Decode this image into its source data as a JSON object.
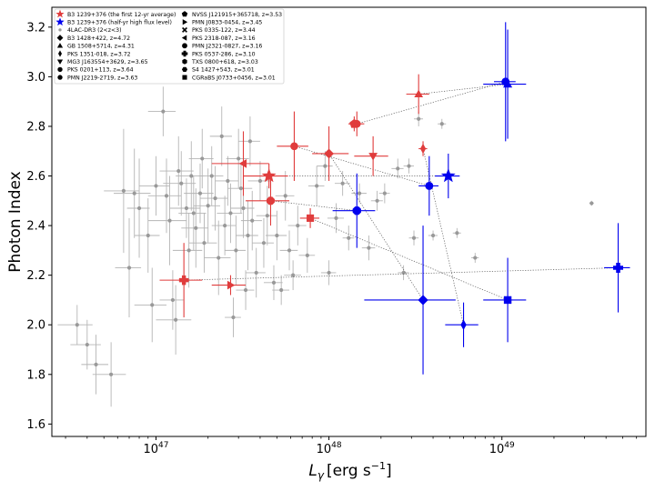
{
  "chart_data": {
    "type": "scatter",
    "title": "",
    "xlabel_base": "L",
    "xlabel_sub": "γ",
    "xlabel_units": "[erg s",
    "xlabel_exp": "−1",
    "xlabel_close": "]",
    "ylabel": "Photon Index",
    "xscale": "log",
    "xlim": [
      2.5e+46,
      6.8e+49
    ],
    "ylim": [
      1.55,
      3.28
    ],
    "xticks": [
      {
        "value": 1e+47,
        "base": "10",
        "exp": "47"
      },
      {
        "value": 1e+48,
        "base": "10",
        "exp": "48"
      },
      {
        "value": 1e+49,
        "base": "10",
        "exp": "49"
      }
    ],
    "yticks": [
      "1.6",
      "1.8",
      "2.0",
      "2.2",
      "2.4",
      "2.6",
      "2.8",
      "3.0",
      "3.2"
    ],
    "legend_position": "top-left",
    "colors": {
      "average": "#e03c3c",
      "high_flux": "#0000ee",
      "population": "#999999",
      "connector": "#555555"
    },
    "legend": [
      {
        "label": "B3 1239+376 (the first 12-yr average)",
        "marker": "star",
        "color": "#e03c3c"
      },
      {
        "label": "B3 1239+376 (half-yr high flux level)",
        "marker": "star",
        "color": "#0000ee"
      },
      {
        "label": "4LAC-DR3 (2<z<3)",
        "marker": "dot",
        "color": "#999999"
      },
      {
        "label": "B3 1428+422, z=4.72",
        "marker": "diamond",
        "color": "#000000"
      },
      {
        "label": "GB 1508+5714, z=4.31",
        "marker": "triangle-up",
        "color": "#000000"
      },
      {
        "label": "PKS 1351-018, z=3.72",
        "marker": "thin-diamond",
        "color": "#000000"
      },
      {
        "label": "MG3 J163554+3629, z=3.65",
        "marker": "triangle-down",
        "color": "#000000"
      },
      {
        "label": "PKS 0201+113, z=3.64",
        "marker": "circle",
        "color": "#000000"
      },
      {
        "label": "PMN J2219-2719, z=3.63",
        "marker": "circle",
        "color": "#000000"
      },
      {
        "label": "NVSS J121915+365718, z=3.53",
        "marker": "pentagon",
        "color": "#000000"
      },
      {
        "label": "PMN J0833-0454, z=3.45",
        "marker": "triangle-right",
        "color": "#000000"
      },
      {
        "label": "PKS 0335-122, z=3.44",
        "marker": "x",
        "color": "#000000"
      },
      {
        "label": "PKS 2318-087, z=3.16",
        "marker": "triangle-left",
        "color": "#000000"
      },
      {
        "label": "PMN J2321-0827, z=3.16",
        "marker": "octagon",
        "color": "#000000"
      },
      {
        "label": "PKS 0537-286, z=3.10",
        "marker": "plus",
        "color": "#000000"
      },
      {
        "label": "TXS 0800+618, z=3.03",
        "marker": "hexagon",
        "color": "#000000"
      },
      {
        "label": "S4 1427+543, z=3.01",
        "marker": "hexagon2",
        "color": "#000000"
      },
      {
        "label": "CGRaBS J0733+0456, z=3.01",
        "marker": "square",
        "color": "#000000"
      }
    ],
    "pairs": [
      {
        "name": "B3 1239+376",
        "marker": "star",
        "avg": {
          "x": 4.5e+47,
          "y": 2.6,
          "xerr": [
            1.3e+47,
            1.3e+47
          ],
          "yerr": [
            0.05,
            0.05
          ]
        },
        "high": {
          "x": 4.9e+48,
          "y": 2.6,
          "xerr": [
            8e+47,
            8e+47
          ],
          "yerr": [
            0.09,
            0.09
          ]
        }
      },
      {
        "name": "B3 1428+422",
        "marker": "diamond",
        "avg": {
          "x": 1e+48,
          "y": 2.69,
          "xerr": [
            2e+47,
            3e+47
          ],
          "yerr": [
            0.11,
            0.11
          ]
        },
        "high": {
          "x": 3.5e+48,
          "y": 2.1,
          "xerr": [
            1.9e+48,
            1.9e+48
          ],
          "yerr": [
            0.3,
            0.3
          ]
        }
      },
      {
        "name": "GB 1508+5714",
        "marker": "triangle-up",
        "avg": {
          "x": 3.3e+48,
          "y": 2.93,
          "xerr": [
            5e+47,
            5e+47
          ],
          "yerr": [
            0.08,
            0.08
          ]
        },
        "high": {
          "x": 1.08e+49,
          "y": 2.97,
          "xerr": [
            3e+48,
            3e+48
          ],
          "yerr": [
            0.22,
            0.22
          ]
        }
      },
      {
        "name": "PKS 1351-018",
        "marker": "thin-diamond",
        "avg": {
          "x": 3.5e+48,
          "y": 2.71,
          "xerr": [
            2e+47,
            2e+47
          ],
          "yerr": [
            0.03,
            0.03
          ]
        },
        "high": {
          "x": 6e+48,
          "y": 2.0,
          "xerr": [
            1.3e+48,
            1.3e+48
          ],
          "yerr": [
            0.09,
            0.09
          ]
        }
      },
      {
        "name": "MG3 J163554+3629",
        "marker": "triangle-down",
        "avg": {
          "x": 1.8e+48,
          "y": 2.68,
          "xerr": [
            4e+47,
            4e+47
          ],
          "yerr": [
            0.08,
            0.08
          ]
        },
        "high": null
      },
      {
        "name": "PKS 0201+113",
        "marker": "circle",
        "avg": {
          "x": 6.3e+47,
          "y": 2.72,
          "xerr": [
            1.3e+47,
            1.3e+47
          ],
          "yerr": [
            0.14,
            0.14
          ]
        },
        "high": {
          "x": 3.8e+48,
          "y": 2.56,
          "xerr": [
            5e+47,
            5e+47
          ],
          "yerr": [
            0.12,
            0.12
          ]
        }
      },
      {
        "name": "PMN J2219-2719",
        "marker": "circle",
        "avg": {
          "x": 1.45e+48,
          "y": 2.81,
          "xerr": [
            1.5e+47,
            1.5e+47
          ],
          "yerr": [
            0.05,
            0.05
          ]
        },
        "high": {
          "x": 1.05e+49,
          "y": 2.98,
          "xerr": [
            1.5e+48,
            1.5e+48
          ],
          "yerr": [
            0.24,
            0.24
          ]
        }
      },
      {
        "name": "NVSS J121915+365718",
        "marker": "pentagon",
        "avg": {
          "x": 1.4e+48,
          "y": 2.81,
          "xerr": [
            1e+47,
            1e+47
          ],
          "yerr": [
            0.03,
            0.03
          ]
        },
        "high": null
      },
      {
        "name": "PMN J0833-0454",
        "marker": "triangle-right",
        "avg": {
          "x": 2.7e+47,
          "y": 2.16,
          "xerr": [
            6e+46,
            6e+46
          ],
          "yerr": [
            0.04,
            0.04
          ]
        },
        "high": null
      },
      {
        "name": "PKS 2318-087",
        "marker": "triangle-left",
        "avg": {
          "x": 3.2e+47,
          "y": 2.65,
          "xerr": [
            1.1e+47,
            1.3e+47
          ],
          "yerr": [
            0.13,
            0.13
          ]
        },
        "high": null
      },
      {
        "name": "PMN J2321-0827",
        "marker": "octagon",
        "avg": {
          "x": 4.6e+47,
          "y": 2.5,
          "xerr": [
            1.3e+47,
            1.3e+47
          ],
          "yerr": [
            0.1,
            0.1
          ]
        },
        "high": {
          "x": 1.45e+48,
          "y": 2.46,
          "xerr": [
            4e+47,
            4e+47
          ],
          "yerr": [
            0.15,
            0.15
          ]
        }
      },
      {
        "name": "PKS 0537-286",
        "marker": "plus",
        "avg": {
          "x": 1.45e+47,
          "y": 2.18,
          "xerr": [
            4e+46,
            4e+46
          ],
          "yerr": [
            0.15,
            0.15
          ]
        },
        "high": {
          "x": 4.7e+49,
          "y": 2.23,
          "xerr": [
            8e+48,
            8e+48
          ],
          "yerr": [
            0.18,
            0.18
          ]
        }
      },
      {
        "name": "CGRaBS J0733+0456",
        "marker": "square",
        "avg": {
          "x": 7.8e+47,
          "y": 2.43,
          "xerr": [
            1e+47,
            1e+47
          ],
          "yerr": [
            0.04,
            0.04
          ]
        },
        "high": {
          "x": 1.08e+49,
          "y": 2.1,
          "xerr": [
            3e+48,
            3e+48
          ],
          "yerr": [
            0.17,
            0.17
          ]
        }
      }
    ],
    "population": [
      {
        "x": 3.5e+46,
        "y": 2.0,
        "xerr": 8e+45,
        "yerr": 0.08
      },
      {
        "x": 4e+46,
        "y": 1.92,
        "xerr": 8e+45,
        "yerr": 0.1
      },
      {
        "x": 4.5e+46,
        "y": 1.84,
        "xerr": 8e+45,
        "yerr": 0.12
      },
      {
        "x": 5.5e+46,
        "y": 1.8,
        "xerr": 1.2e+46,
        "yerr": 0.13
      },
      {
        "x": 6.5e+46,
        "y": 2.54,
        "xerr": 1.5e+46,
        "yerr": 0.25
      },
      {
        "x": 7e+46,
        "y": 2.23,
        "xerr": 1.2e+46,
        "yerr": 0.2
      },
      {
        "x": 7.5e+46,
        "y": 2.53,
        "xerr": 1.8e+46,
        "yerr": 0.18
      },
      {
        "x": 8e+46,
        "y": 2.47,
        "xerr": 1.2e+46,
        "yerr": 0.2
      },
      {
        "x": 9e+46,
        "y": 2.36,
        "xerr": 1.5e+46,
        "yerr": 0.15
      },
      {
        "x": 9.5e+46,
        "y": 2.08,
        "xerr": 2e+46,
        "yerr": 0.15
      },
      {
        "x": 1e+47,
        "y": 2.56,
        "xerr": 2e+46,
        "yerr": 0.12
      },
      {
        "x": 1.1e+47,
        "y": 2.86,
        "xerr": 2e+46,
        "yerr": 0.1
      },
      {
        "x": 1.15e+47,
        "y": 2.52,
        "xerr": 2.5e+46,
        "yerr": 0.15
      },
      {
        "x": 1.2e+47,
        "y": 2.42,
        "xerr": 3e+46,
        "yerr": 0.18
      },
      {
        "x": 1.25e+47,
        "y": 2.1,
        "xerr": 2e+46,
        "yerr": 0.12
      },
      {
        "x": 1.3e+47,
        "y": 2.02,
        "xerr": 3e+46,
        "yerr": 0.14
      },
      {
        "x": 1.35e+47,
        "y": 2.62,
        "xerr": 3e+46,
        "yerr": 0.14
      },
      {
        "x": 1.4e+47,
        "y": 2.57,
        "xerr": 3e+46,
        "yerr": 0.13
      },
      {
        "x": 1.5e+47,
        "y": 2.47,
        "xerr": 3e+46,
        "yerr": 0.12
      },
      {
        "x": 1.55e+47,
        "y": 2.3,
        "xerr": 3e+46,
        "yerr": 0.15
      },
      {
        "x": 1.6e+47,
        "y": 2.6,
        "xerr": 3e+46,
        "yerr": 0.14
      },
      {
        "x": 1.65e+47,
        "y": 2.45,
        "xerr": 3e+46,
        "yerr": 0.15
      },
      {
        "x": 1.7e+47,
        "y": 2.39,
        "xerr": 3e+46,
        "yerr": 0.16
      },
      {
        "x": 1.8e+47,
        "y": 2.53,
        "xerr": 3.5e+46,
        "yerr": 0.12
      },
      {
        "x": 1.85e+47,
        "y": 2.67,
        "xerr": 3e+46,
        "yerr": 0.12
      },
      {
        "x": 1.9e+47,
        "y": 2.33,
        "xerr": 3.5e+46,
        "yerr": 0.12
      },
      {
        "x": 2e+47,
        "y": 2.48,
        "xerr": 3.5e+46,
        "yerr": 0.15
      },
      {
        "x": 2.1e+47,
        "y": 2.6,
        "xerr": 3.5e+46,
        "yerr": 0.12
      },
      {
        "x": 2.2e+47,
        "y": 2.51,
        "xerr": 4e+46,
        "yerr": 0.13
      },
      {
        "x": 2.3e+47,
        "y": 2.27,
        "xerr": 4e+46,
        "yerr": 0.15
      },
      {
        "x": 2.4e+47,
        "y": 2.76,
        "xerr": 3.5e+46,
        "yerr": 0.12
      },
      {
        "x": 2.5e+47,
        "y": 2.4,
        "xerr": 4e+46,
        "yerr": 0.12
      },
      {
        "x": 2.6e+47,
        "y": 2.58,
        "xerr": 4e+46,
        "yerr": 0.1
      },
      {
        "x": 2.7e+47,
        "y": 2.45,
        "xerr": 4.5e+46,
        "yerr": 0.12
      },
      {
        "x": 2.8e+47,
        "y": 2.03,
        "xerr": 3e+46,
        "yerr": 0.08
      },
      {
        "x": 2.9e+47,
        "y": 2.3,
        "xerr": 4e+46,
        "yerr": 0.14
      },
      {
        "x": 3e+47,
        "y": 2.67,
        "xerr": 4.5e+46,
        "yerr": 0.12
      },
      {
        "x": 3.1e+47,
        "y": 2.55,
        "xerr": 5e+46,
        "yerr": 0.1
      },
      {
        "x": 3.2e+47,
        "y": 2.47,
        "xerr": 5e+46,
        "yerr": 0.12
      },
      {
        "x": 3.3e+47,
        "y": 2.14,
        "xerr": 4e+46,
        "yerr": 0.08
      },
      {
        "x": 3.4e+47,
        "y": 2.36,
        "xerr": 5e+46,
        "yerr": 0.14
      },
      {
        "x": 3.5e+47,
        "y": 2.74,
        "xerr": 5e+46,
        "yerr": 0.1
      },
      {
        "x": 3.6e+47,
        "y": 2.42,
        "xerr": 5e+46,
        "yerr": 0.12
      },
      {
        "x": 3.8e+47,
        "y": 2.21,
        "xerr": 5e+46,
        "yerr": 0.1
      },
      {
        "x": 4e+47,
        "y": 2.58,
        "xerr": 6e+46,
        "yerr": 0.08
      },
      {
        "x": 4.2e+47,
        "y": 2.33,
        "xerr": 6e+46,
        "yerr": 0.1
      },
      {
        "x": 4.4e+47,
        "y": 2.44,
        "xerr": 6e+46,
        "yerr": 0.12
      },
      {
        "x": 4.8e+47,
        "y": 2.17,
        "xerr": 6e+46,
        "yerr": 0.07
      },
      {
        "x": 5e+47,
        "y": 2.36,
        "xerr": 7e+46,
        "yerr": 0.1
      },
      {
        "x": 5.3e+47,
        "y": 2.14,
        "xerr": 6e+46,
        "yerr": 0.06
      },
      {
        "x": 5.6e+47,
        "y": 2.52,
        "xerr": 7e+46,
        "yerr": 0.1
      },
      {
        "x": 5.9e+47,
        "y": 2.3,
        "xerr": 7e+46,
        "yerr": 0.08
      },
      {
        "x": 6.2e+47,
        "y": 2.2,
        "xerr": 7e+46,
        "yerr": 0.06
      },
      {
        "x": 6.6e+47,
        "y": 2.4,
        "xerr": 8e+46,
        "yerr": 0.08
      },
      {
        "x": 7.5e+47,
        "y": 2.28,
        "xerr": 8e+46,
        "yerr": 0.07
      },
      {
        "x": 8.5e+47,
        "y": 2.56,
        "xerr": 9e+46,
        "yerr": 0.08
      },
      {
        "x": 9.5e+47,
        "y": 2.64,
        "xerr": 1e+47,
        "yerr": 0.06
      },
      {
        "x": 1e+48,
        "y": 2.21,
        "xerr": 1e+47,
        "yerr": 0.05
      },
      {
        "x": 1.1e+48,
        "y": 2.43,
        "xerr": 1.2e+47,
        "yerr": 0.06
      },
      {
        "x": 1.2e+48,
        "y": 2.57,
        "xerr": 1.2e+47,
        "yerr": 0.05
      },
      {
        "x": 1.3e+48,
        "y": 2.35,
        "xerr": 1e+47,
        "yerr": 0.05
      },
      {
        "x": 1.5e+48,
        "y": 2.53,
        "xerr": 1.5e+47,
        "yerr": 0.04
      },
      {
        "x": 1.7e+48,
        "y": 2.31,
        "xerr": 1.5e+47,
        "yerr": 0.05
      },
      {
        "x": 1.9e+48,
        "y": 2.5,
        "xerr": 1.5e+47,
        "yerr": 0.04
      },
      {
        "x": 2.1e+48,
        "y": 2.53,
        "xerr": 1.5e+47,
        "yerr": 0.04
      },
      {
        "x": 2.5e+48,
        "y": 2.63,
        "xerr": 2e+47,
        "yerr": 0.04
      },
      {
        "x": 2.7e+48,
        "y": 2.21,
        "xerr": 2e+47,
        "yerr": 0.03
      },
      {
        "x": 2.9e+48,
        "y": 2.64,
        "xerr": 2e+47,
        "yerr": 0.03
      },
      {
        "x": 3.1e+48,
        "y": 2.35,
        "xerr": 2e+47,
        "yerr": 0.03
      },
      {
        "x": 3.3e+48,
        "y": 2.83,
        "xerr": 2e+47,
        "yerr": 0.03
      },
      {
        "x": 4e+48,
        "y": 2.36,
        "xerr": 2.5e+47,
        "yerr": 0.02
      },
      {
        "x": 4.5e+48,
        "y": 2.81,
        "xerr": 2.5e+47,
        "yerr": 0.02
      },
      {
        "x": 5.5e+48,
        "y": 2.37,
        "xerr": 3e+47,
        "yerr": 0.02
      },
      {
        "x": 7e+48,
        "y": 2.27,
        "xerr": 3.5e+47,
        "yerr": 0.02
      },
      {
        "x": 3.3e+49,
        "y": 2.49,
        "xerr": 1e+48,
        "yerr": 0.01
      }
    ]
  }
}
